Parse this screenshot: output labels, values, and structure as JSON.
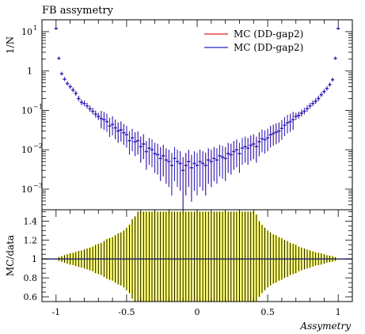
{
  "chart_data": [
    {
      "type": "scatter",
      "title": "FB assymetry",
      "ylabel": "1/N",
      "yscale": "log",
      "ylim": [
        0.0003,
        20
      ],
      "xlim": [
        -1.1,
        1.1
      ],
      "grid": false,
      "legend_position": "top-right",
      "y_tick_labels": [
        {
          "value": 10,
          "label": "10",
          "sup": "1"
        },
        {
          "value": 1,
          "label": "1",
          "sup": ""
        },
        {
          "value": 0.1,
          "label": "10",
          "sup": "−1"
        },
        {
          "value": 0.01,
          "label": "10",
          "sup": "−2"
        },
        {
          "value": 0.001,
          "label": "10",
          "sup": "−3"
        }
      ],
      "series": [
        {
          "name": "MC (DD-gap2)",
          "color": "#dd2222",
          "x": [
            -1.0,
            -0.98,
            -0.96,
            -0.94,
            -0.92,
            -0.9,
            -0.88,
            -0.86,
            -0.84,
            -0.82,
            -0.8,
            -0.78,
            -0.76,
            -0.74,
            -0.72,
            -0.7,
            -0.68,
            -0.66,
            -0.64,
            -0.62,
            -0.6,
            -0.58,
            -0.56,
            -0.54,
            -0.52,
            -0.5,
            -0.48,
            -0.46,
            -0.44,
            -0.42,
            -0.4,
            -0.38,
            -0.36,
            -0.34,
            -0.32,
            -0.3,
            -0.28,
            -0.26,
            -0.24,
            -0.22,
            -0.2,
            -0.18,
            -0.16,
            -0.14,
            -0.12,
            -0.1,
            -0.08,
            -0.06,
            -0.04,
            -0.02,
            0.0,
            0.02,
            0.04,
            0.06,
            0.08,
            0.1,
            0.12,
            0.14,
            0.16,
            0.18,
            0.2,
            0.22,
            0.24,
            0.26,
            0.28,
            0.3,
            0.32,
            0.34,
            0.36,
            0.38,
            0.4,
            0.42,
            0.44,
            0.46,
            0.48,
            0.5,
            0.52,
            0.54,
            0.56,
            0.58,
            0.6,
            0.62,
            0.64,
            0.66,
            0.68,
            0.7,
            0.72,
            0.74,
            0.76,
            0.78,
            0.8,
            0.82,
            0.84,
            0.86,
            0.88,
            0.9,
            0.92,
            0.94,
            0.96,
            0.98,
            1.0
          ],
          "y": [
            12,
            2.1,
            0.85,
            0.62,
            0.48,
            0.4,
            0.33,
            0.27,
            0.2,
            0.16,
            0.15,
            0.13,
            0.11,
            0.095,
            0.08,
            0.07,
            0.062,
            0.058,
            0.052,
            0.04,
            0.044,
            0.036,
            0.03,
            0.032,
            0.027,
            0.024,
            0.017,
            0.02,
            0.016,
            0.017,
            0.012,
            0.014,
            0.009,
            0.011,
            0.01,
            0.008,
            0.0075,
            0.006,
            0.007,
            0.0055,
            0.005,
            0.004,
            0.006,
            0.005,
            0.0045,
            0.003,
            0.004,
            0.005,
            0.0035,
            0.0045,
            0.004,
            0.005,
            0.0045,
            0.004,
            0.0055,
            0.005,
            0.006,
            0.0055,
            0.007,
            0.0065,
            0.006,
            0.008,
            0.0075,
            0.009,
            0.01,
            0.008,
            0.011,
            0.012,
            0.011,
            0.013,
            0.014,
            0.012,
            0.016,
            0.019,
            0.018,
            0.02,
            0.024,
            0.026,
            0.028,
            0.03,
            0.035,
            0.042,
            0.048,
            0.052,
            0.058,
            0.07,
            0.075,
            0.085,
            0.095,
            0.11,
            0.13,
            0.15,
            0.17,
            0.2,
            0.25,
            0.3,
            0.36,
            0.45,
            0.6,
            2.1,
            12
          ]
        },
        {
          "name": "MC (DD-gap2)",
          "color": "#2222cc",
          "x": [
            -1.0,
            -0.98,
            -0.96,
            -0.94,
            -0.92,
            -0.9,
            -0.88,
            -0.86,
            -0.84,
            -0.82,
            -0.8,
            -0.78,
            -0.76,
            -0.74,
            -0.72,
            -0.7,
            -0.68,
            -0.66,
            -0.64,
            -0.62,
            -0.6,
            -0.58,
            -0.56,
            -0.54,
            -0.52,
            -0.5,
            -0.48,
            -0.46,
            -0.44,
            -0.42,
            -0.4,
            -0.38,
            -0.36,
            -0.34,
            -0.32,
            -0.3,
            -0.28,
            -0.26,
            -0.24,
            -0.22,
            -0.2,
            -0.18,
            -0.16,
            -0.14,
            -0.12,
            -0.1,
            -0.08,
            -0.06,
            -0.04,
            -0.02,
            0.0,
            0.02,
            0.04,
            0.06,
            0.08,
            0.1,
            0.12,
            0.14,
            0.16,
            0.18,
            0.2,
            0.22,
            0.24,
            0.26,
            0.28,
            0.3,
            0.32,
            0.34,
            0.36,
            0.38,
            0.4,
            0.42,
            0.44,
            0.46,
            0.48,
            0.5,
            0.52,
            0.54,
            0.56,
            0.58,
            0.6,
            0.62,
            0.64,
            0.66,
            0.68,
            0.7,
            0.72,
            0.74,
            0.76,
            0.78,
            0.8,
            0.82,
            0.84,
            0.86,
            0.88,
            0.9,
            0.92,
            0.94,
            0.96,
            0.98,
            1.0
          ],
          "y": [
            12,
            2.1,
            0.85,
            0.62,
            0.48,
            0.4,
            0.33,
            0.27,
            0.2,
            0.16,
            0.15,
            0.13,
            0.11,
            0.095,
            0.08,
            0.07,
            0.062,
            0.058,
            0.052,
            0.04,
            0.044,
            0.036,
            0.03,
            0.032,
            0.027,
            0.024,
            0.017,
            0.02,
            0.016,
            0.017,
            0.012,
            0.014,
            0.009,
            0.011,
            0.01,
            0.008,
            0.0075,
            0.006,
            0.007,
            0.0055,
            0.005,
            0.004,
            0.006,
            0.005,
            0.0045,
            0.003,
            0.004,
            0.005,
            0.0035,
            0.0045,
            0.004,
            0.005,
            0.0045,
            0.004,
            0.0055,
            0.005,
            0.006,
            0.0055,
            0.007,
            0.0065,
            0.006,
            0.008,
            0.0075,
            0.009,
            0.01,
            0.008,
            0.011,
            0.012,
            0.011,
            0.013,
            0.014,
            0.012,
            0.016,
            0.019,
            0.018,
            0.02,
            0.024,
            0.026,
            0.028,
            0.03,
            0.035,
            0.042,
            0.048,
            0.052,
            0.058,
            0.07,
            0.075,
            0.085,
            0.095,
            0.11,
            0.13,
            0.15,
            0.17,
            0.2,
            0.25,
            0.3,
            0.36,
            0.45,
            0.6,
            2.1,
            12
          ]
        }
      ]
    },
    {
      "type": "bar",
      "ylabel": "MC/data",
      "xlabel": "Assymetry",
      "ylim": [
        0.55,
        1.52
      ],
      "xlim": [
        -1.1,
        1.1
      ],
      "reference_line": 1,
      "band_color": "#ffff44",
      "x_tick_labels": [
        "-1",
        "-0.5",
        "0",
        "0.5",
        "1"
      ],
      "y_tick_labels": [
        "0.6",
        "0.8",
        "1",
        "1.2",
        "1.4"
      ],
      "x": [
        -1.0,
        -0.98,
        -0.96,
        -0.94,
        -0.92,
        -0.9,
        -0.88,
        -0.86,
        -0.84,
        -0.82,
        -0.8,
        -0.78,
        -0.76,
        -0.74,
        -0.72,
        -0.7,
        -0.68,
        -0.66,
        -0.64,
        -0.62,
        -0.6,
        -0.58,
        -0.56,
        -0.54,
        -0.52,
        -0.5,
        -0.48,
        -0.46,
        -0.44,
        -0.42,
        -0.4,
        -0.38,
        -0.36,
        -0.34,
        -0.32,
        -0.3,
        -0.28,
        -0.26,
        -0.24,
        -0.22,
        -0.2,
        -0.18,
        -0.16,
        -0.14,
        -0.12,
        -0.1,
        -0.08,
        -0.06,
        -0.04,
        -0.02,
        0.0,
        0.02,
        0.04,
        0.06,
        0.08,
        0.1,
        0.12,
        0.14,
        0.16,
        0.18,
        0.2,
        0.22,
        0.24,
        0.26,
        0.28,
        0.3,
        0.32,
        0.34,
        0.36,
        0.38,
        0.4,
        0.42,
        0.44,
        0.46,
        0.48,
        0.5,
        0.52,
        0.54,
        0.56,
        0.58,
        0.6,
        0.62,
        0.64,
        0.66,
        0.68,
        0.7,
        0.72,
        0.74,
        0.76,
        0.78,
        0.8,
        0.82,
        0.84,
        0.86,
        0.88,
        0.9,
        0.92,
        0.94,
        0.96,
        0.98,
        1.0
      ],
      "half_width": [
        0.0,
        0.02,
        0.03,
        0.04,
        0.05,
        0.06,
        0.065,
        0.075,
        0.085,
        0.09,
        0.1,
        0.11,
        0.12,
        0.13,
        0.15,
        0.16,
        0.17,
        0.19,
        0.21,
        0.22,
        0.23,
        0.25,
        0.27,
        0.28,
        0.3,
        0.33,
        0.36,
        0.42,
        0.45,
        0.5,
        0.5,
        0.5,
        0.5,
        0.5,
        0.5,
        0.5,
        0.5,
        0.5,
        0.5,
        0.5,
        0.5,
        0.5,
        0.5,
        0.5,
        0.5,
        0.5,
        0.5,
        0.5,
        0.5,
        0.5,
        0.5,
        0.5,
        0.5,
        0.5,
        0.5,
        0.5,
        0.5,
        0.5,
        0.5,
        0.5,
        0.5,
        0.5,
        0.5,
        0.5,
        0.5,
        0.5,
        0.5,
        0.5,
        0.5,
        0.5,
        0.5,
        0.47,
        0.4,
        0.36,
        0.33,
        0.3,
        0.28,
        0.26,
        0.25,
        0.23,
        0.22,
        0.2,
        0.19,
        0.17,
        0.16,
        0.15,
        0.13,
        0.12,
        0.11,
        0.1,
        0.09,
        0.08,
        0.07,
        0.065,
        0.06,
        0.05,
        0.04,
        0.035,
        0.03,
        0.02,
        0.0
      ]
    }
  ]
}
